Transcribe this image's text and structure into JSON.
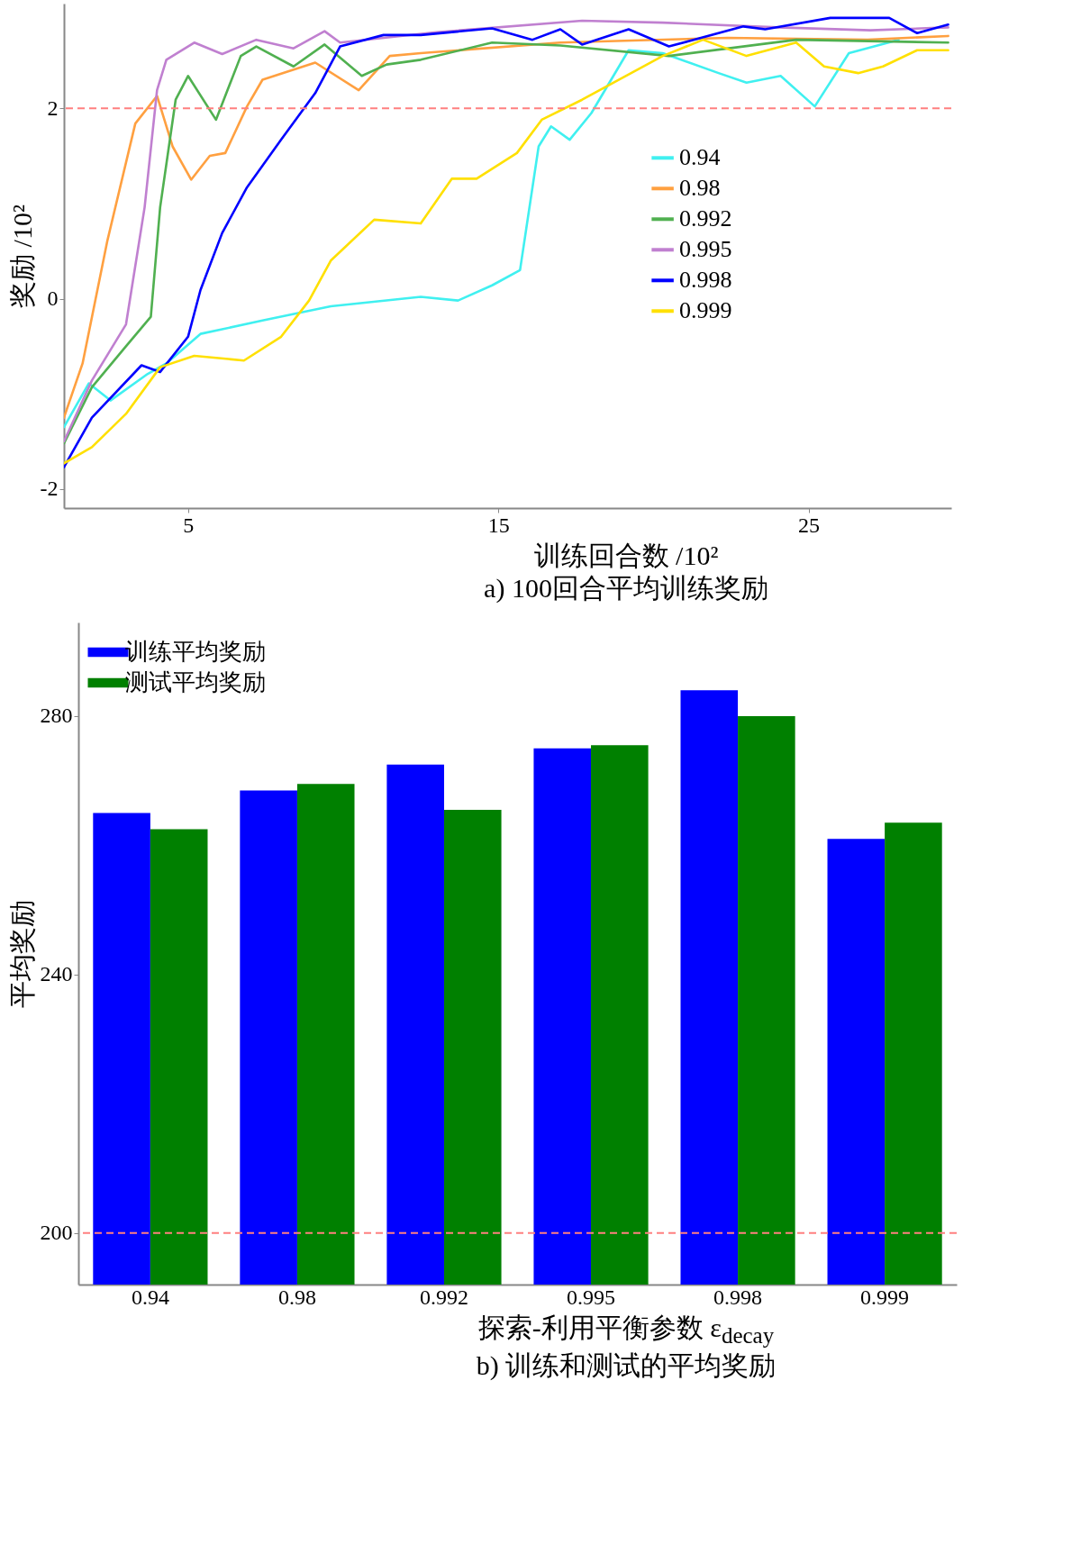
{
  "chart_data": [
    {
      "type": "line",
      "title": "a)   100回合平均训练奖励",
      "xlabel": "训练回合数 /10²",
      "ylabel": "奖励 /10²",
      "xlim": [
        1,
        29.6
      ],
      "ylim": [
        -2.2,
        3.1
      ],
      "xticks": [
        5,
        15,
        25
      ],
      "yticks": [
        -2,
        0,
        2
      ],
      "legend": "right",
      "ref_lines": [
        {
          "axis": "y",
          "value": 2,
          "color": "#ff8080",
          "line_style": "dashed"
        }
      ],
      "series": [
        {
          "name": "0.94",
          "color": "#40f0f0",
          "x": [
            1,
            1.8,
            2.5,
            3.7,
            4.3,
            5.4,
            7.4,
            9.6,
            12.5,
            13.7,
            14.8,
            15.7,
            16.3,
            16.7,
            17.3,
            18,
            19.2,
            20.3,
            22.1,
            23,
            24.1,
            25.2,
            26.3,
            27.9
          ],
          "values": [
            -1.35,
            -0.89,
            -1.07,
            -0.79,
            -0.68,
            -0.37,
            -0.23,
            -0.08,
            0.02,
            -0.02,
            0.14,
            0.3,
            1.6,
            1.81,
            1.67,
            1.95,
            2.61,
            2.58,
            2.37,
            2.27,
            2.34,
            2.02,
            2.58,
            2.72
          ]
        },
        {
          "name": "0.98",
          "color": "#ffa040",
          "x": [
            1,
            1.6,
            2.4,
            3.3,
            4,
            4.5,
            5.1,
            5.7,
            6.2,
            6.9,
            7.4,
            9.1,
            10.5,
            11.5,
            12.5,
            17,
            22.4,
            26.9,
            29.5
          ],
          "values": [
            -1.25,
            -0.68,
            0.61,
            1.84,
            2.13,
            1.6,
            1.25,
            1.5,
            1.53,
            2.02,
            2.3,
            2.48,
            2.19,
            2.55,
            2.58,
            2.69,
            2.74,
            2.72,
            2.76
          ]
        },
        {
          "name": "0.992",
          "color": "#50b050",
          "x": [
            1,
            1.9,
            3,
            3.8,
            4.1,
            4.6,
            5,
            5.9,
            6.7,
            7.2,
            8.4,
            9.4,
            10.6,
            11.4,
            12.5,
            14.8,
            17,
            20.5,
            24.6,
            29.5
          ],
          "values": [
            -1.52,
            -0.93,
            -0.5,
            -0.19,
            0.96,
            2.09,
            2.34,
            1.88,
            2.55,
            2.65,
            2.44,
            2.67,
            2.34,
            2.46,
            2.51,
            2.69,
            2.66,
            2.55,
            2.72,
            2.69
          ]
        },
        {
          "name": "0.995",
          "color": "#c080d0",
          "x": [
            1,
            1.9,
            3,
            3.6,
            4,
            4.3,
            5.2,
            6.1,
            7.2,
            8.4,
            9.4,
            9.9,
            13,
            17.7,
            20.3,
            24,
            27,
            29.5
          ],
          "values": [
            -1.5,
            -0.86,
            -0.27,
            0.96,
            2.19,
            2.51,
            2.69,
            2.57,
            2.72,
            2.63,
            2.81,
            2.69,
            2.8,
            2.92,
            2.9,
            2.85,
            2.82,
            2.85
          ]
        },
        {
          "name": "0.998",
          "color": "#0000ff",
          "x": [
            1,
            1.9,
            3.5,
            4.1,
            5,
            5.4,
            6.1,
            6.9,
            8,
            9.1,
            9.9,
            11.3,
            12.5,
            14.8,
            16.1,
            17,
            17.7,
            19.2,
            20.5,
            22.9,
            23.6,
            25.7,
            27.6,
            28.5,
            29.5
          ],
          "values": [
            -1.77,
            -1.25,
            -0.7,
            -0.77,
            -0.4,
            0.09,
            0.69,
            1.17,
            1.67,
            2.16,
            2.65,
            2.77,
            2.77,
            2.84,
            2.72,
            2.83,
            2.67,
            2.83,
            2.65,
            2.86,
            2.83,
            2.95,
            2.95,
            2.79,
            2.88
          ]
        },
        {
          "name": "0.999",
          "color": "#ffe000",
          "x": [
            1,
            1.9,
            3,
            4.1,
            5.2,
            6.8,
            8,
            8.9,
            9.6,
            11,
            12.5,
            13.5,
            14.3,
            15.6,
            16.4,
            17.7,
            20.3,
            21.6,
            23,
            24.6,
            25.5,
            26.6,
            27.4,
            28.5,
            29.5
          ],
          "values": [
            -1.73,
            -1.56,
            -1.21,
            -0.72,
            -0.6,
            -0.65,
            -0.4,
            -0.02,
            0.4,
            0.83,
            0.79,
            1.26,
            1.26,
            1.53,
            1.88,
            2.09,
            2.55,
            2.72,
            2.55,
            2.69,
            2.44,
            2.37,
            2.44,
            2.61,
            2.61
          ]
        }
      ]
    },
    {
      "type": "bar",
      "title": "b)   训练和测试的平均奖励",
      "xlabel": "探索-利用平衡参数 ε$_{decay}$",
      "ylabel": "平均奖励",
      "ylim": [
        192,
        294.5
      ],
      "yticks": [
        200,
        240,
        280
      ],
      "legend": "top left",
      "categories": [
        "0.94",
        "0.98",
        "0.992",
        "0.995",
        "0.998",
        "0.999"
      ],
      "ref_lines": [
        {
          "axis": "y",
          "value": 200,
          "color": "#ff8080",
          "line_style": "dashed"
        }
      ],
      "series": [
        {
          "name": "训练平均奖励",
          "color": "#0000ff",
          "values": [
            265,
            268.5,
            272.5,
            275,
            284,
            261
          ]
        },
        {
          "name": "测试平均奖励",
          "color": "#008000",
          "values": [
            262.5,
            269.5,
            265.5,
            275.5,
            280,
            263.5
          ]
        }
      ]
    }
  ]
}
